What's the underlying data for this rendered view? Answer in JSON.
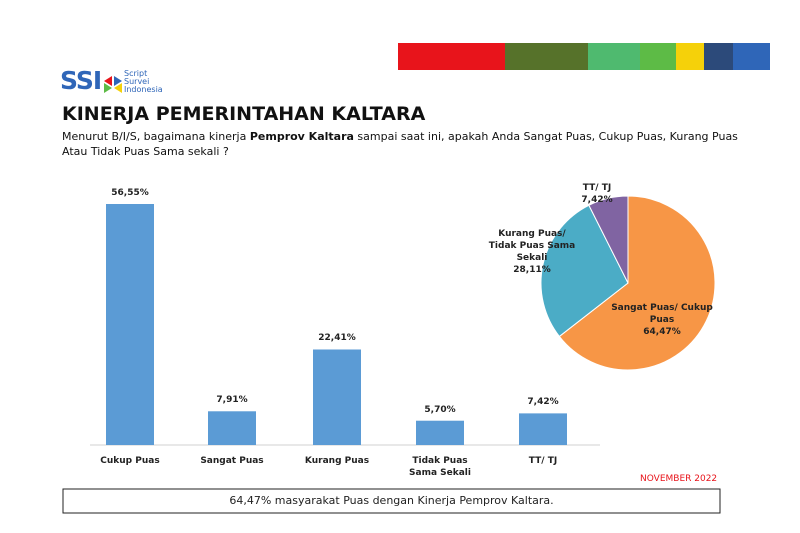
{
  "header": {
    "logo": "SSI",
    "logo_sub": "Script Survei Indonesia",
    "title": "KINERJA PEMERINTAHAN KALTARA",
    "question": [
      "Menurut B/I/S, bagaimana kinerja ",
      "Pemprov Kaltara",
      " sampai saat ini, apakah Anda Sangat Puas, Cukup Puas, Kurang Puas Atau Tidak Puas Sama sekali ?"
    ]
  },
  "chart_data": [
    {
      "type": "bar",
      "categories": [
        "Cukup Puas",
        "Sangat Puas",
        "Kurang Puas",
        "Tidak Puas Sama Sekali",
        "TT/ TJ"
      ],
      "values": [
        56.55,
        7.91,
        22.41,
        5.7,
        7.42
      ],
      "value_labels": [
        "56,55%",
        "7,91%",
        "22,41%",
        "5,70%",
        "7,42%"
      ],
      "color": "#5b9bd5"
    },
    {
      "type": "pie",
      "categories": [
        "Sangat Puas/ Cukup Puas",
        "Kurang Puas/ Tidak Puas Sama Sekali",
        "TT/ TJ"
      ],
      "values": [
        64.47,
        28.11,
        7.42
      ],
      "value_labels": [
        "64,47%",
        "28,11%",
        "7,42%"
      ],
      "colors": [
        "#f79646",
        "#4bacc6",
        "#8064a2"
      ]
    }
  ],
  "date": "NOVEMBER 2022",
  "summary": "64,47% masyarakat Puas dengan Kinerja Pemprov Kaltara."
}
